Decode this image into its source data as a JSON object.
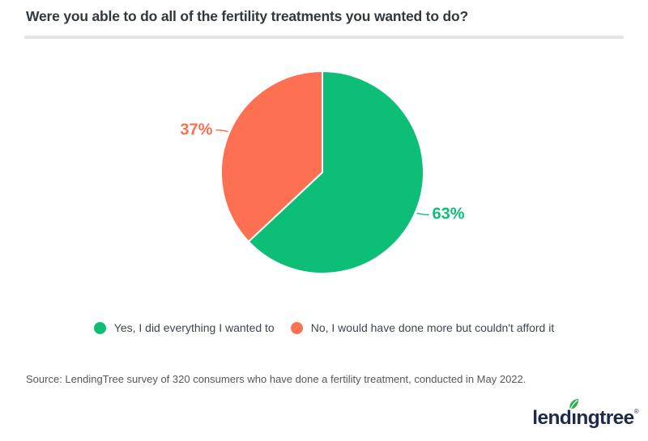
{
  "title": "Were you able to do all of the fertility treatments you wanted to do?",
  "source": "Source: LendingTree survey of 320 consumers who have done a fertility treatment, conducted in May 2022.",
  "logo": {
    "text": "lendingtree",
    "registered_mark": "®",
    "leaf_icon": "leaf-icon",
    "text_color": "#1d2b49",
    "leaf_color": "#2eb34b"
  },
  "chart_data": {
    "type": "pie",
    "title": "Were you able to do all of the fertility treatments you wanted to do?",
    "series": [
      {
        "name": "Yes, I did everything I wanted to",
        "value": 63,
        "label": "63%",
        "color": "#0dbf76"
      },
      {
        "name": "No, I would have done more but couldn't afford it",
        "value": 37,
        "label": "37%",
        "color": "#fe7052"
      }
    ],
    "start_angle_deg": 0,
    "direction": "clockwise",
    "legend_position": "bottom",
    "slice_border_color": "#ffffff",
    "label_style": "outside-with-leader"
  }
}
